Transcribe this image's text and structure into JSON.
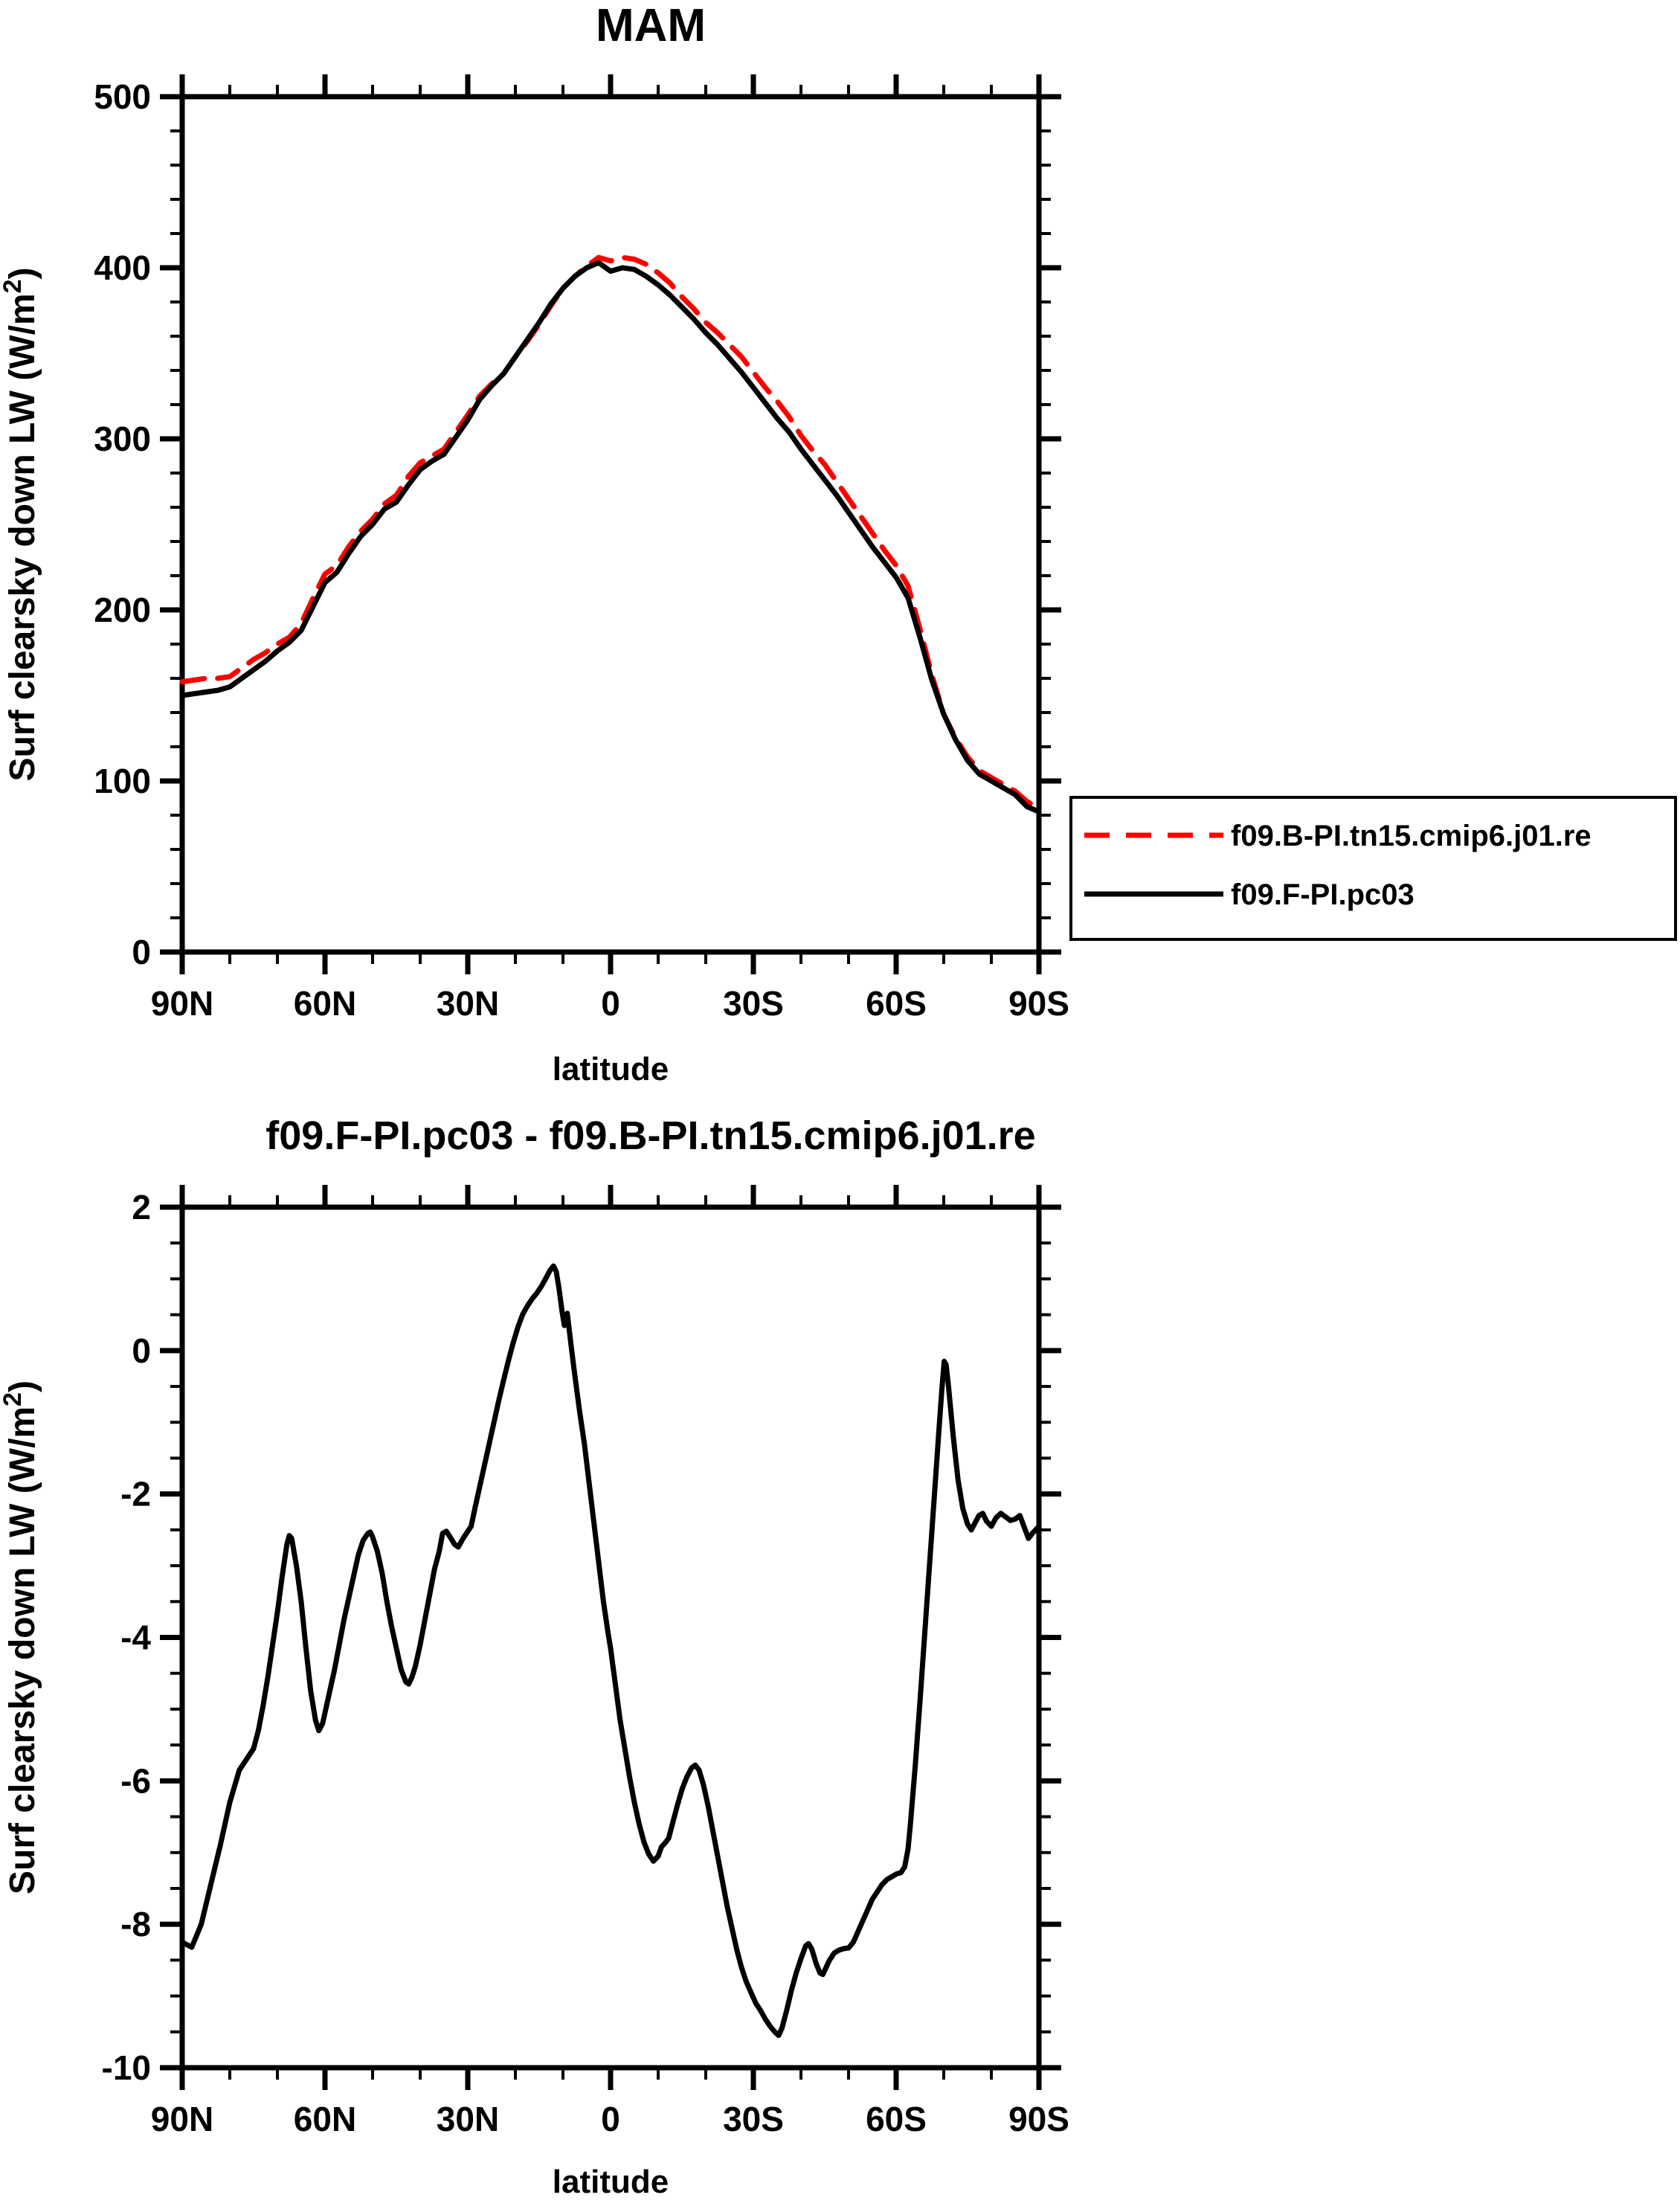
{
  "colors": {
    "background": "#ffffff",
    "axis": "#000000",
    "series_red": "#ff0000",
    "series_black": "#000000"
  },
  "legend": {
    "entries": [
      {
        "label": "f09.B-PI.tn15.cmip6.j01.re",
        "color": "#ff0000",
        "style": "dashed"
      },
      {
        "label": "f09.F-PI.pc03",
        "color": "#000000",
        "style": "solid"
      }
    ]
  },
  "chart_data": [
    {
      "id": "top",
      "type": "line",
      "title": "MAM",
      "xlabel": "latitude",
      "ylabel": "Surf clearsky down LW (W/m2)",
      "ylabel_parts": {
        "base": "Surf clearsky down LW (W/m",
        "sup": "2",
        "close": ")"
      },
      "xlim": [
        90,
        -90
      ],
      "ylim": [
        0,
        500
      ],
      "x_major_ticks": [
        90,
        60,
        30,
        0,
        -30,
        -60,
        -90
      ],
      "x_major_labels": [
        "90N",
        "60N",
        "30N",
        "0",
        "30S",
        "60S",
        "90S"
      ],
      "x_minor_step": 10,
      "y_major_ticks": [
        0,
        100,
        200,
        300,
        400,
        500
      ],
      "y_major_labels": [
        "0",
        "100",
        "200",
        "300",
        "400",
        "500"
      ],
      "y_minor_step": 20,
      "grid": false,
      "legend_position": "outside-right-below",
      "x": [
        90,
        87.5,
        85,
        82.5,
        80,
        77.5,
        75,
        72.5,
        70,
        67.5,
        65,
        62.5,
        60,
        57.5,
        55,
        52.5,
        50,
        47.5,
        45,
        42.5,
        40,
        37.5,
        35,
        32.5,
        30,
        27.5,
        25,
        22.5,
        20,
        17.5,
        15,
        12.5,
        10,
        7.5,
        5,
        2.5,
        0,
        -2.5,
        -5,
        -7.5,
        -10,
        -12.5,
        -15,
        -17.5,
        -20,
        -22.5,
        -25,
        -27.5,
        -30,
        -32.5,
        -35,
        -37.5,
        -40,
        -42.5,
        -45,
        -47.5,
        -50,
        -52.5,
        -55,
        -57.5,
        -60,
        -62.5,
        -65,
        -67.5,
        -70,
        -72.5,
        -75,
        -77.5,
        -80,
        -82.5,
        -85,
        -87.5,
        -90
      ],
      "series": [
        {
          "name": "f09.B-PI.tn15.cmip6.j01.re",
          "color": "#ff0000",
          "style": "dashed",
          "values": [
            158,
            159,
            160,
            160,
            161,
            166,
            171,
            175,
            180,
            184,
            192,
            207,
            221,
            226,
            237,
            246,
            253,
            262,
            267,
            278,
            286,
            290,
            294,
            304,
            314,
            325,
            332,
            338,
            348,
            357,
            367,
            378,
            388,
            395,
            401,
            406,
            404,
            406,
            405,
            402,
            397,
            391,
            383,
            376,
            368,
            362,
            355,
            348,
            339,
            330,
            322,
            313,
            302,
            293,
            285,
            275,
            265,
            255,
            245,
            235,
            226,
            214,
            189,
            162,
            139,
            125,
            114,
            106,
            102,
            98,
            94,
            88,
            84
          ]
        },
        {
          "name": "f09.F-PI.pc03",
          "color": "#000000",
          "style": "solid",
          "values": [
            150,
            151,
            152,
            153,
            155,
            160,
            165,
            170,
            176,
            181,
            188,
            202,
            216,
            222,
            233,
            243,
            250,
            259,
            263,
            273,
            282,
            287,
            291,
            301,
            311,
            323,
            331,
            338,
            348,
            358,
            368,
            379,
            388,
            395,
            400,
            403,
            398,
            400,
            399,
            395,
            390,
            384,
            377,
            370,
            362,
            355,
            347,
            339,
            330,
            321,
            312,
            304,
            294,
            285,
            276,
            267,
            257,
            247,
            237,
            228,
            219,
            207,
            184,
            159,
            139,
            124,
            112,
            104,
            100,
            96,
            92,
            85,
            82
          ]
        }
      ]
    },
    {
      "id": "bottom",
      "type": "line",
      "title": "f09.F-PI.pc03 - f09.B-PI.tn15.cmip6.j01.re",
      "xlabel": "latitude",
      "ylabel": "Surf clearsky down LW (W/m2)",
      "ylabel_parts": {
        "base": "Surf clearsky down LW (W/m",
        "sup": "2",
        "close": ")"
      },
      "xlim": [
        90,
        -90
      ],
      "ylim": [
        -10,
        2
      ],
      "x_major_ticks": [
        90,
        60,
        30,
        0,
        -30,
        -60,
        -90
      ],
      "x_major_labels": [
        "90N",
        "60N",
        "30N",
        "0",
        "30S",
        "60S",
        "90S"
      ],
      "x_minor_step": 10,
      "y_major_ticks": [
        2,
        0,
        -2,
        -4,
        -6,
        -8,
        -10
      ],
      "y_major_labels": [
        "2",
        "0",
        "-2",
        "-4",
        "-6",
        "-8",
        "-10"
      ],
      "y_minor_step": 0.5,
      "grid": false,
      "series": [
        {
          "name": "f09.F-PI.pc03 - f09.B-PI.tn15.cmip6.j01.re",
          "color": "#000000",
          "style": "solid",
          "points": [
            [
              90,
              -8.25
            ],
            [
              88,
              -8.32
            ],
            [
              86,
              -8.0
            ],
            [
              84,
              -7.45
            ],
            [
              82,
              -6.9
            ],
            [
              80,
              -6.3
            ],
            [
              78,
              -5.85
            ],
            [
              76,
              -5.65
            ],
            [
              75,
              -5.55
            ],
            [
              74,
              -5.3
            ],
            [
              73,
              -4.95
            ],
            [
              72,
              -4.55
            ],
            [
              71,
              -4.1
            ],
            [
              70,
              -3.65
            ],
            [
              69,
              -3.15
            ],
            [
              68,
              -2.7
            ],
            [
              67.5,
              -2.58
            ],
            [
              67,
              -2.62
            ],
            [
              66,
              -3.0
            ],
            [
              65,
              -3.5
            ],
            [
              64,
              -4.15
            ],
            [
              63,
              -4.75
            ],
            [
              62,
              -5.15
            ],
            [
              61.3,
              -5.3
            ],
            [
              60.5,
              -5.2
            ],
            [
              60,
              -5.05
            ],
            [
              59,
              -4.75
            ],
            [
              58,
              -4.45
            ],
            [
              57,
              -4.1
            ],
            [
              56,
              -3.75
            ],
            [
              55,
              -3.45
            ],
            [
              54,
              -3.15
            ],
            [
              53,
              -2.85
            ],
            [
              52,
              -2.65
            ],
            [
              51,
              -2.55
            ],
            [
              50.5,
              -2.53
            ],
            [
              50,
              -2.6
            ],
            [
              49,
              -2.8
            ],
            [
              48,
              -3.1
            ],
            [
              47,
              -3.5
            ],
            [
              46,
              -3.85
            ],
            [
              45,
              -4.15
            ],
            [
              44,
              -4.45
            ],
            [
              43,
              -4.62
            ],
            [
              42.4,
              -4.65
            ],
            [
              41.7,
              -4.55
            ],
            [
              41,
              -4.4
            ],
            [
              40,
              -4.1
            ],
            [
              39,
              -3.75
            ],
            [
              38,
              -3.4
            ],
            [
              37,
              -3.05
            ],
            [
              36,
              -2.8
            ],
            [
              35.3,
              -2.55
            ],
            [
              34.5,
              -2.52
            ],
            [
              33.7,
              -2.6
            ],
            [
              32.8,
              -2.7
            ],
            [
              32,
              -2.74
            ],
            [
              31,
              -2.62
            ],
            [
              30,
              -2.52
            ],
            [
              29.3,
              -2.45
            ],
            [
              28.5,
              -2.2
            ],
            [
              27.5,
              -1.9
            ],
            [
              26.5,
              -1.6
            ],
            [
              25.5,
              -1.3
            ],
            [
              24.5,
              -1.0
            ],
            [
              23.5,
              -0.7
            ],
            [
              22.5,
              -0.42
            ],
            [
              21.5,
              -0.15
            ],
            [
              20.5,
              0.1
            ],
            [
              19.5,
              0.32
            ],
            [
              18.5,
              0.5
            ],
            [
              17.5,
              0.62
            ],
            [
              16.5,
              0.72
            ],
            [
              15.5,
              0.8
            ],
            [
              14.5,
              0.9
            ],
            [
              13.5,
              1.02
            ],
            [
              12.7,
              1.12
            ],
            [
              12,
              1.18
            ],
            [
              11.4,
              1.1
            ],
            [
              10.8,
              0.85
            ],
            [
              10.2,
              0.55
            ],
            [
              9.7,
              0.35
            ],
            [
              9.4,
              0.42
            ],
            [
              9.1,
              0.52
            ],
            [
              8.7,
              0.3
            ],
            [
              8.2,
              0.02
            ],
            [
              7.5,
              -0.35
            ],
            [
              6.5,
              -0.85
            ],
            [
              5.5,
              -1.3
            ],
            [
              4.5,
              -1.85
            ],
            [
              3.5,
              -2.4
            ],
            [
              2.5,
              -2.95
            ],
            [
              1.5,
              -3.5
            ],
            [
              0.5,
              -3.95
            ],
            [
              0,
              -4.15
            ],
            [
              -1,
              -4.65
            ],
            [
              -2,
              -5.15
            ],
            [
              -3,
              -5.55
            ],
            [
              -4,
              -5.95
            ],
            [
              -5,
              -6.3
            ],
            [
              -6,
              -6.6
            ],
            [
              -7,
              -6.85
            ],
            [
              -8,
              -7.02
            ],
            [
              -9,
              -7.12
            ],
            [
              -10,
              -7.05
            ],
            [
              -10.7,
              -6.92
            ],
            [
              -11.4,
              -6.87
            ],
            [
              -12.2,
              -6.8
            ],
            [
              -13,
              -6.6
            ],
            [
              -14,
              -6.35
            ],
            [
              -15,
              -6.12
            ],
            [
              -16,
              -5.95
            ],
            [
              -17,
              -5.82
            ],
            [
              -17.8,
              -5.78
            ],
            [
              -18.6,
              -5.85
            ],
            [
              -19.5,
              -6.05
            ],
            [
              -20.5,
              -6.35
            ],
            [
              -21.5,
              -6.7
            ],
            [
              -22.5,
              -7.05
            ],
            [
              -23.5,
              -7.4
            ],
            [
              -24.5,
              -7.75
            ],
            [
              -25.5,
              -8.05
            ],
            [
              -26.5,
              -8.35
            ],
            [
              -27.5,
              -8.6
            ],
            [
              -28.5,
              -8.8
            ],
            [
              -29.5,
              -8.95
            ],
            [
              -30.5,
              -9.1
            ],
            [
              -31.5,
              -9.2
            ],
            [
              -32.5,
              -9.32
            ],
            [
              -33.5,
              -9.42
            ],
            [
              -34.5,
              -9.5
            ],
            [
              -35.3,
              -9.55
            ],
            [
              -36,
              -9.45
            ],
            [
              -37,
              -9.2
            ],
            [
              -38,
              -8.92
            ],
            [
              -39,
              -8.68
            ],
            [
              -40,
              -8.48
            ],
            [
              -41,
              -8.3
            ],
            [
              -41.6,
              -8.27
            ],
            [
              -42.3,
              -8.35
            ],
            [
              -43.2,
              -8.55
            ],
            [
              -44,
              -8.68
            ],
            [
              -44.6,
              -8.7
            ],
            [
              -45.3,
              -8.6
            ],
            [
              -46,
              -8.5
            ],
            [
              -47,
              -8.4
            ],
            [
              -48,
              -8.36
            ],
            [
              -49,
              -8.34
            ],
            [
              -50,
              -8.33
            ],
            [
              -51,
              -8.25
            ],
            [
              -52,
              -8.1
            ],
            [
              -53,
              -7.95
            ],
            [
              -54,
              -7.8
            ],
            [
              -55,
              -7.65
            ],
            [
              -56,
              -7.55
            ],
            [
              -57,
              -7.45
            ],
            [
              -58,
              -7.38
            ],
            [
              -59,
              -7.34
            ],
            [
              -60,
              -7.3
            ],
            [
              -61,
              -7.28
            ],
            [
              -61.8,
              -7.2
            ],
            [
              -62.5,
              -6.95
            ],
            [
              -63,
              -6.6
            ],
            [
              -64,
              -5.8
            ],
            [
              -65,
              -4.9
            ],
            [
              -66,
              -3.95
            ],
            [
              -67,
              -3.0
            ],
            [
              -68,
              -2.05
            ],
            [
              -69,
              -1.1
            ],
            [
              -69.6,
              -0.55
            ],
            [
              -70.1,
              -0.15
            ],
            [
              -70.5,
              -0.2
            ],
            [
              -71,
              -0.5
            ],
            [
              -72,
              -1.2
            ],
            [
              -73,
              -1.8
            ],
            [
              -74,
              -2.2
            ],
            [
              -75,
              -2.42
            ],
            [
              -75.8,
              -2.5
            ],
            [
              -76.6,
              -2.4
            ],
            [
              -77.4,
              -2.3
            ],
            [
              -78.2,
              -2.27
            ],
            [
              -79,
              -2.38
            ],
            [
              -80,
              -2.45
            ],
            [
              -81,
              -2.33
            ],
            [
              -82,
              -2.27
            ],
            [
              -83,
              -2.32
            ],
            [
              -84,
              -2.37
            ],
            [
              -85,
              -2.35
            ],
            [
              -86,
              -2.3
            ],
            [
              -87,
              -2.48
            ],
            [
              -87.8,
              -2.62
            ],
            [
              -88.6,
              -2.55
            ],
            [
              -90,
              -2.45
            ]
          ]
        }
      ]
    }
  ]
}
